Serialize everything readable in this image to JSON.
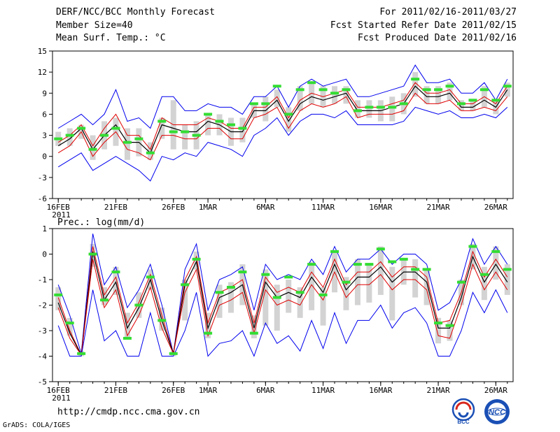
{
  "header": {
    "title": "DERF/NCC/BCC Monthly Forecast",
    "member_size": "Member Size=40",
    "variable": "Mean Surf. Temp.: °C",
    "period": "For 2011/02/16-2011/03/27",
    "start_date": "Fcst Started Refer Date 2011/02/15",
    "produced_date": "Fcst Produced Date 2011/02/16"
  },
  "footer": {
    "url": "http://cmdp.ncc.cma.gov.cn",
    "grads": "GrADS: COLA/IGES",
    "logo_bcc": "BCC",
    "logo_ncc": "NCC"
  },
  "colors": {
    "ensemble_range": "#0000ee",
    "spread": "#e00000",
    "mean": "#000000",
    "member_bar": "#d3d3d3",
    "marker": "#33dd33"
  },
  "chart_data": [
    {
      "type": "line",
      "title": "Mean Surf. Temp.: °C",
      "xlabel": "",
      "ylabel": "",
      "ylim": [
        -6,
        15
      ],
      "yticks": [
        "15",
        "12",
        "9",
        "6",
        "3",
        "0",
        "-3",
        "-6"
      ],
      "xticks": [
        {
          "label": "16FEB",
          "day": 1,
          "year": "2011"
        },
        {
          "label": "21FEB",
          "day": 6
        },
        {
          "label": "26FEB",
          "day": 11
        },
        {
          "label": "1MAR",
          "day": 14
        },
        {
          "label": "6MAR",
          "day": 19
        },
        {
          "label": "11MAR",
          "day": 24
        },
        {
          "label": "16MAR",
          "day": 29
        },
        {
          "label": "21MAR",
          "day": 34
        },
        {
          "label": "26MAR",
          "day": 39
        }
      ],
      "days": [
        1,
        2,
        3,
        4,
        5,
        6,
        7,
        8,
        9,
        10,
        11,
        12,
        13,
        14,
        15,
        16,
        17,
        18,
        19,
        20,
        21,
        22,
        23,
        24,
        25,
        26,
        27,
        28,
        29,
        30,
        31,
        32,
        33,
        34,
        35,
        36,
        37,
        38,
        39,
        40
      ],
      "series": [
        {
          "name": "ensemble max",
          "values": [
            4,
            5,
            6,
            4.5,
            6,
            9.5,
            5,
            5.5,
            4,
            8.5,
            8.5,
            6.5,
            6.5,
            7.5,
            7,
            7,
            6,
            8.5,
            8.5,
            10,
            7,
            10,
            11,
            10,
            10.5,
            11,
            8.5,
            8.5,
            9,
            9.5,
            10,
            13,
            10.5,
            10.5,
            11,
            9,
            9,
            10.5,
            8,
            11
          ]
        },
        {
          "name": "spread upper",
          "values": [
            2,
            3,
            4.5,
            1.5,
            4,
            6,
            3,
            3,
            1,
            5.5,
            4.5,
            4.5,
            4.5,
            5.5,
            5,
            4,
            4,
            7,
            7,
            8.5,
            5.5,
            8,
            9,
            8.5,
            9,
            9.5,
            7,
            7,
            7,
            7.5,
            8,
            10.5,
            9,
            9,
            9.5,
            7.5,
            7.5,
            8.5,
            7.5,
            10
          ]
        },
        {
          "name": "ensemble mean",
          "values": [
            1.5,
            2.5,
            4,
            1,
            3,
            4.5,
            2,
            2,
            0.5,
            4.5,
            4,
            3.5,
            3.5,
            5,
            4.5,
            3.5,
            3.5,
            6.5,
            6.5,
            8,
            5,
            7.5,
            8.5,
            8,
            8.5,
            9,
            6.5,
            6.5,
            6.5,
            7,
            7.5,
            10,
            8.5,
            8.5,
            9,
            7,
            7,
            8,
            7,
            9.5
          ]
        },
        {
          "name": "spread lower",
          "values": [
            0.5,
            1.5,
            3.5,
            0,
            2,
            3.5,
            1,
            0.5,
            -0.5,
            3,
            3,
            2.5,
            2.5,
            4,
            4,
            2.5,
            2.5,
            5.5,
            6,
            7,
            4,
            6.5,
            7.5,
            7,
            7.5,
            8.5,
            5.5,
            6,
            6,
            6,
            6.5,
            9,
            7.5,
            7.5,
            8,
            6.5,
            6.5,
            7,
            6.5,
            8.5
          ]
        },
        {
          "name": "ensemble min",
          "values": [
            -1.5,
            -0.5,
            0.5,
            -2,
            -1,
            0,
            -1,
            -2,
            -3.5,
            0,
            -0.5,
            0.5,
            0,
            2,
            1.5,
            1,
            0,
            3,
            4,
            5.5,
            3,
            5,
            6,
            6,
            5.5,
            6.5,
            4.5,
            4.5,
            4.5,
            4.5,
            5,
            7,
            6.5,
            6,
            6.5,
            5.5,
            5.5,
            6,
            5.5,
            7
          ]
        }
      ],
      "member_bars": [
        [
          1.5,
          3.5
        ],
        [
          1.5,
          4
        ],
        [
          2.5,
          4.5
        ],
        [
          -0.5,
          3
        ],
        [
          1,
          5
        ],
        [
          1.5,
          5.5
        ],
        [
          -0.5,
          4
        ],
        [
          0,
          4
        ],
        [
          -0.5,
          2
        ],
        [
          2.5,
          5.5
        ],
        [
          1,
          8
        ],
        [
          1,
          4.5
        ],
        [
          1,
          5
        ],
        [
          3,
          6
        ],
        [
          3,
          6
        ],
        [
          1.5,
          5.5
        ],
        [
          2,
          5.5
        ],
        [
          5.5,
          7.5
        ],
        [
          5,
          8.5
        ],
        [
          7,
          9.5
        ],
        [
          3.5,
          7
        ],
        [
          6.5,
          10
        ],
        [
          7.5,
          10.5
        ],
        [
          7,
          10
        ],
        [
          7.5,
          10
        ],
        [
          7.5,
          10
        ],
        [
          5.5,
          8
        ],
        [
          5.5,
          8
        ],
        [
          5,
          8
        ],
        [
          5,
          8.5
        ],
        [
          6,
          9
        ],
        [
          8.5,
          12
        ],
        [
          7.5,
          10
        ],
        [
          7.5,
          10
        ],
        [
          8,
          10.5
        ],
        [
          6.5,
          8
        ],
        [
          6.5,
          8
        ],
        [
          7,
          10
        ],
        [
          6,
          8
        ],
        [
          8.5,
          10.5
        ]
      ],
      "markers": [
        2.5,
        3,
        4,
        1,
        3,
        4,
        2,
        2.5,
        0.5,
        5,
        3.5,
        3.5,
        3,
        6,
        5,
        4.5,
        4,
        7.5,
        7.5,
        10,
        6,
        9.5,
        10.5,
        9.5,
        9,
        9.5,
        6.5,
        7,
        7,
        7,
        7.5,
        11,
        9.5,
        9.5,
        10,
        7.5,
        8,
        9.5,
        8,
        10
      ]
    },
    {
      "type": "line",
      "title": "Prec.: log(mm/d)",
      "xlabel": "",
      "ylabel": "",
      "ylim": [
        -5,
        1
      ],
      "yticks": [
        "1",
        "0",
        "-1",
        "-2",
        "-3",
        "-4",
        "-5"
      ],
      "xticks": [
        {
          "label": "16FEB",
          "day": 1,
          "year": "2011"
        },
        {
          "label": "21FEB",
          "day": 6
        },
        {
          "label": "26FEB",
          "day": 11
        },
        {
          "label": "1MAR",
          "day": 14
        },
        {
          "label": "6MAR",
          "day": 19
        },
        {
          "label": "11MAR",
          "day": 24
        },
        {
          "label": "16MAR",
          "day": 29
        },
        {
          "label": "21MAR",
          "day": 34
        },
        {
          "label": "26MAR",
          "day": 39
        }
      ],
      "days": [
        1,
        2,
        3,
        4,
        5,
        6,
        7,
        8,
        9,
        10,
        11,
        12,
        13,
        14,
        15,
        16,
        17,
        18,
        19,
        20,
        21,
        22,
        23,
        24,
        25,
        26,
        27,
        28,
        29,
        30,
        31,
        32,
        33,
        34,
        35,
        36,
        37,
        38,
        39,
        40
      ],
      "series": [
        {
          "name": "ensemble max",
          "values": [
            -1.2,
            -2.4,
            -3.9,
            0.8,
            -1.2,
            -0.5,
            -2.1,
            -1.4,
            -0.4,
            -2,
            -3.9,
            -0.6,
            0.4,
            -2.2,
            -1,
            -0.8,
            -0.5,
            -2.2,
            -0.4,
            -1,
            -0.8,
            -1,
            -0.2,
            -0.8,
            0.3,
            -0.7,
            -0.2,
            -0.2,
            0.2,
            -0.4,
            0,
            0,
            -0.4,
            -2.2,
            -1.9,
            -1,
            0.6,
            -0.4,
            0.3,
            -0.4
          ]
        },
        {
          "name": "spread upper",
          "values": [
            -1.7,
            -3,
            -3.95,
            0.3,
            -1.6,
            -0.9,
            -2.7,
            -1.9,
            -0.8,
            -2.4,
            -3.9,
            -1,
            -0.1,
            -2.7,
            -1.5,
            -1.3,
            -1,
            -2.7,
            -0.9,
            -1.5,
            -1.3,
            -1.5,
            -0.7,
            -1.3,
            -0.2,
            -1.2,
            -0.7,
            -0.7,
            -0.3,
            -0.9,
            -0.5,
            -0.5,
            -0.9,
            -2.7,
            -2.6,
            -1.5,
            0.1,
            -0.9,
            -0.2,
            -0.9
          ]
        },
        {
          "name": "ensemble mean",
          "values": [
            -1.9,
            -3.1,
            -3.95,
            0.1,
            -1.8,
            -1.1,
            -2.9,
            -2.1,
            -1,
            -2.6,
            -3.9,
            -1.2,
            -0.3,
            -2.9,
            -1.7,
            -1.5,
            -1.2,
            -2.9,
            -1.1,
            -1.7,
            -1.5,
            -1.7,
            -0.9,
            -1.5,
            -0.4,
            -1.4,
            -0.9,
            -0.9,
            -0.5,
            -1.1,
            -0.7,
            -0.7,
            -1.1,
            -2.9,
            -2.9,
            -1.7,
            -0.1,
            -1.1,
            -0.4,
            -1.1
          ]
        },
        {
          "name": "spread lower",
          "values": [
            -2.1,
            -3.3,
            -3.95,
            -0.2,
            -2.1,
            -1.4,
            -3.2,
            -2.4,
            -1.3,
            -2.9,
            -3.9,
            -1.5,
            -0.6,
            -3.2,
            -2,
            -1.8,
            -1.5,
            -3.1,
            -1.4,
            -2,
            -1.8,
            -2,
            -1.2,
            -1.8,
            -0.7,
            -1.7,
            -1.2,
            -1.2,
            -0.8,
            -1.4,
            -1,
            -1,
            -1.4,
            -3.2,
            -3.3,
            -2,
            -0.4,
            -1.4,
            -0.7,
            -1.4
          ]
        },
        {
          "name": "ensemble min",
          "values": [
            -2.8,
            -4,
            -4,
            -1.4,
            -3.4,
            -3,
            -4,
            -4,
            -2.3,
            -4,
            -4,
            -3,
            -1.5,
            -4,
            -3.5,
            -3.4,
            -3,
            -4,
            -2.7,
            -3.5,
            -3.2,
            -3.8,
            -2.6,
            -3.7,
            -2.3,
            -3.5,
            -2.6,
            -2.6,
            -2,
            -2.9,
            -2.3,
            -2.1,
            -2.7,
            -4,
            -4,
            -3,
            -1.5,
            -2.3,
            -1.4,
            -2.3
          ]
        }
      ],
      "member_bars": [
        [
          -2.2,
          -1.3
        ],
        [
          -3.2,
          -2.5
        ],
        [
          -4,
          -3.8
        ],
        [
          -0.5,
          0.4
        ],
        [
          -2,
          -1.3
        ],
        [
          -1.6,
          -0.5
        ],
        [
          -3.3,
          -2.3
        ],
        [
          -2.5,
          -1.5
        ],
        [
          -1.4,
          -0.6
        ],
        [
          -3,
          -2.1
        ],
        [
          -4,
          -3.8
        ],
        [
          -2.6,
          -1
        ],
        [
          -0.6,
          0.1
        ],
        [
          -3.3,
          -2.3
        ],
        [
          -2.5,
          -1.2
        ],
        [
          -2.3,
          -1.1
        ],
        [
          -2,
          -0.4
        ],
        [
          -3.3,
          -2.4
        ],
        [
          -2.8,
          -0.6
        ],
        [
          -3,
          -1.2
        ],
        [
          -2.3,
          -1
        ],
        [
          -2.5,
          -1.3
        ],
        [
          -2.2,
          -0.3
        ],
        [
          -2.8,
          -1.3
        ],
        [
          -1.5,
          0.1
        ],
        [
          -2.2,
          -0.9
        ],
        [
          -2,
          -0.2
        ],
        [
          -1.9,
          -0.4
        ],
        [
          -1.6,
          0.3
        ],
        [
          -2.6,
          -0.5
        ],
        [
          -1.2,
          -0.2
        ],
        [
          -1.7,
          -0.2
        ],
        [
          -2,
          -0.6
        ],
        [
          -3.5,
          -2.5
        ],
        [
          -3.4,
          -2.6
        ],
        [
          -2,
          -1
        ],
        [
          -0.6,
          0.4
        ],
        [
          -1.8,
          -0.5
        ],
        [
          -1,
          0.3
        ],
        [
          -1.6,
          -0.4
        ]
      ],
      "markers": [
        -1.6,
        -2.7,
        -3.9,
        0,
        -1.8,
        -0.7,
        -3.3,
        -2,
        -0.9,
        -2.6,
        -3.9,
        -1.2,
        -0.2,
        -3.1,
        -1.5,
        -1.3,
        -0.7,
        -3.1,
        -0.8,
        -1.7,
        -0.9,
        -1.5,
        -0.4,
        -1.6,
        0.1,
        -1.1,
        -0.4,
        -0.4,
        0.2,
        -0.3,
        -0.2,
        -0.6,
        -0.6,
        -2.7,
        -2.8,
        -1.1,
        0.3,
        -0.8,
        0.1,
        -0.6
      ]
    }
  ]
}
